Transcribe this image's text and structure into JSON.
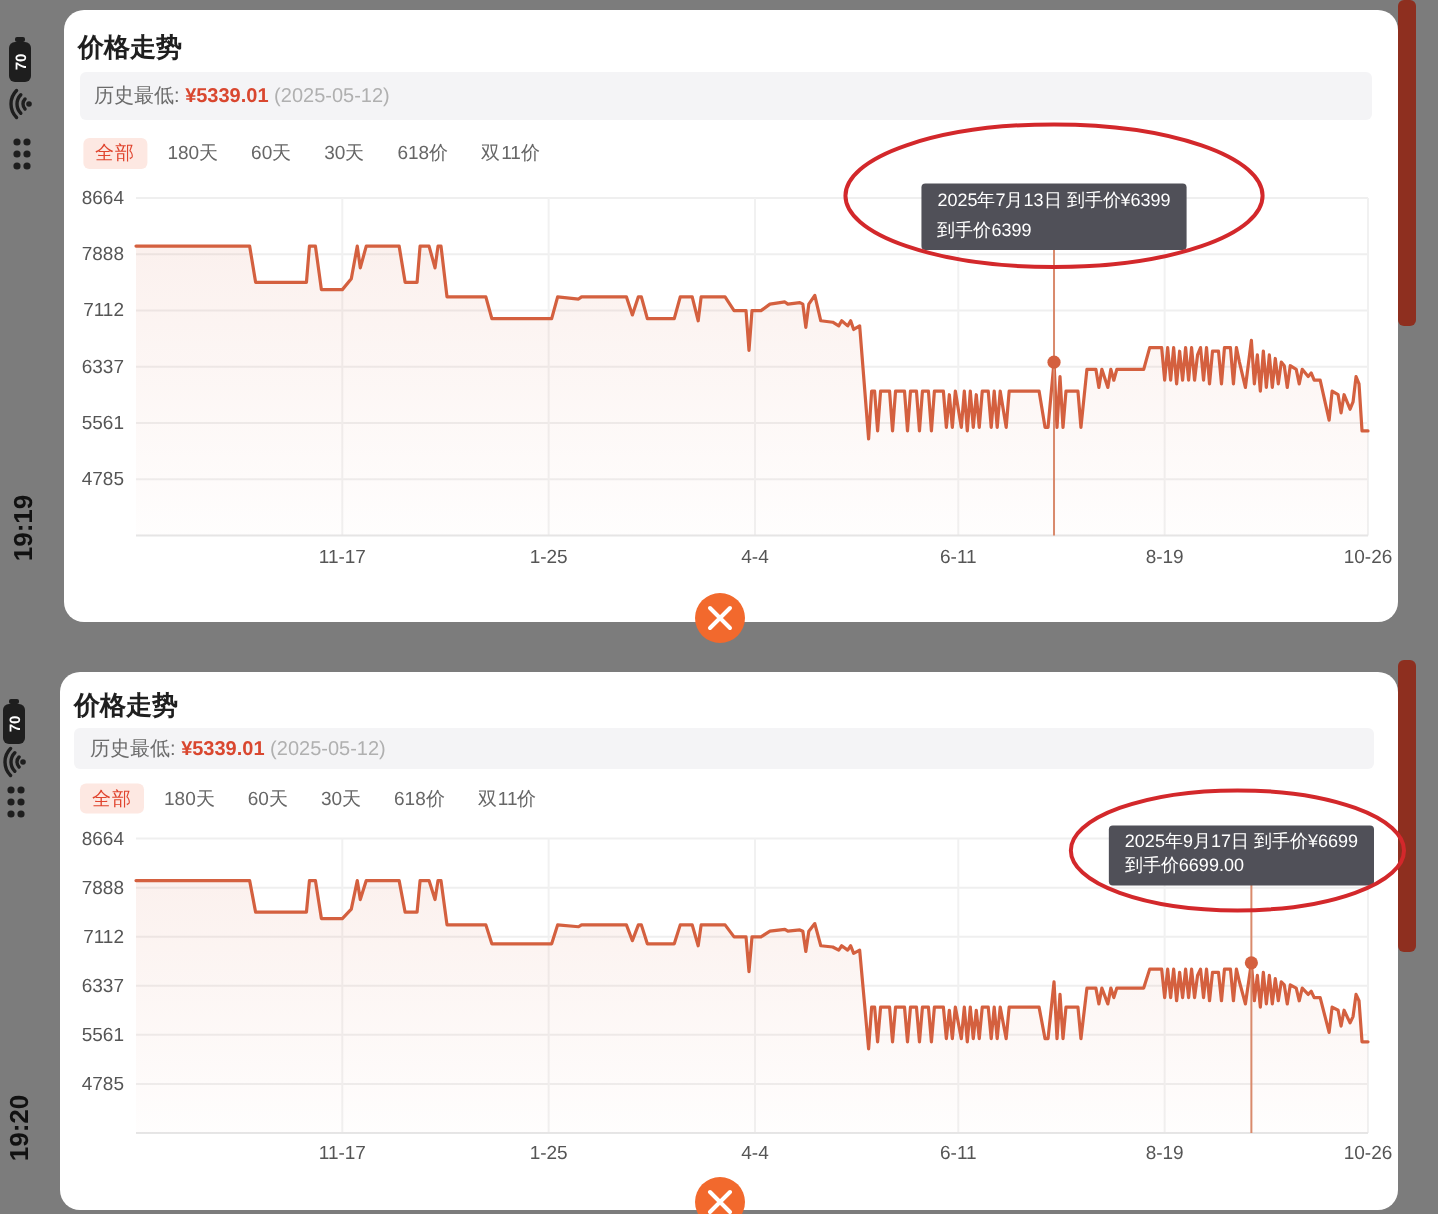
{
  "chart_data": [
    {
      "type": "area",
      "title": "价格走势",
      "subtitle": "历史最低: **¥5339.01** (2025-05-12)",
      "color": "#d4603f",
      "x": [
        "2024-09-09",
        "2024-10-17",
        "2024-10-19",
        "2024-11-05",
        "2024-11-06",
        "2024-11-08",
        "2024-11-10",
        "2024-11-17",
        "2024-11-20",
        "2024-11-22",
        "2024-11-23",
        "2024-11-25",
        "2024-12-06",
        "2024-12-08",
        "2024-12-12",
        "2024-12-13",
        "2024-12-16",
        "2024-12-18",
        "2024-12-19",
        "2024-12-20",
        "2024-12-22",
        "2025-01-04",
        "2025-01-06",
        "2025-01-26",
        "2025-01-28",
        "2025-02-04",
        "2025-02-05",
        "2025-02-20",
        "2025-02-22",
        "2025-02-24",
        "2025-02-25",
        "2025-02-27",
        "2025-03-08",
        "2025-03-10",
        "2025-03-14",
        "2025-03-16",
        "2025-03-17",
        "2025-03-25",
        "2025-03-28",
        "2025-04-01",
        "2025-04-02",
        "2025-04-03",
        "2025-04-06",
        "2025-04-09",
        "2025-04-14",
        "2025-04-15",
        "2025-04-19",
        "2025-04-20",
        "2025-04-21",
        "2025-04-22",
        "2025-04-24",
        "2025-04-26",
        "2025-04-30",
        "2025-05-02",
        "2025-05-03",
        "2025-05-05",
        "2025-05-06",
        "2025-05-07",
        "2025-05-09",
        "2025-05-12",
        "2025-05-13",
        "2025-05-14",
        "2025-05-15",
        "2025-05-16",
        "2025-05-19",
        "2025-05-20",
        "2025-05-21",
        "2025-05-24",
        "2025-05-25",
        "2025-05-26",
        "2025-05-28",
        "2025-05-29",
        "2025-05-30",
        "2025-06-01",
        "2025-06-02",
        "2025-06-03",
        "2025-06-06",
        "2025-06-07",
        "2025-06-08",
        "2025-06-09",
        "2025-06-10",
        "2025-06-12",
        "2025-06-13",
        "2025-06-14",
        "2025-06-15",
        "2025-06-16",
        "2025-06-17",
        "2025-06-18",
        "2025-06-19",
        "2025-06-21",
        "2025-06-22",
        "2025-06-23",
        "2025-06-24",
        "2025-06-25",
        "2025-06-27",
        "2025-06-28",
        "2025-07-08",
        "2025-07-10",
        "2025-07-11",
        "2025-07-13",
        "2025-07-14",
        "2025-07-15",
        "2025-07-16",
        "2025-07-17",
        "2025-07-21",
        "2025-07-22",
        "2025-07-24",
        "2025-07-27",
        "2025-07-28",
        "2025-07-29",
        "2025-07-31",
        "2025-08-01",
        "2025-08-02",
        "2025-08-03",
        "2025-08-12",
        "2025-08-14",
        "2025-08-18",
        "2025-08-19",
        "2025-08-20",
        "2025-08-21",
        "2025-08-22",
        "2025-08-23",
        "2025-08-24",
        "2025-08-25",
        "2025-08-26",
        "2025-08-27",
        "2025-08-28",
        "2025-08-29",
        "2025-08-30",
        "2025-08-31",
        "2025-09-01",
        "2025-09-02",
        "2025-09-03",
        "2025-09-04",
        "2025-09-06",
        "2025-09-07",
        "2025-09-08",
        "2025-09-10",
        "2025-09-11",
        "2025-09-12",
        "2025-09-13",
        "2025-09-15",
        "2025-09-17",
        "2025-09-18",
        "2025-09-19",
        "2025-09-20",
        "2025-09-21",
        "2025-09-22",
        "2025-09-23",
        "2025-09-24",
        "2025-09-25",
        "2025-09-26",
        "2025-09-27",
        "2025-09-28",
        "2025-09-29",
        "2025-09-30",
        "2025-10-02",
        "2025-10-03",
        "2025-10-04",
        "2025-10-06",
        "2025-10-07",
        "2025-10-08",
        "2025-10-10",
        "2025-10-13",
        "2025-10-14",
        "2025-10-16",
        "2025-10-17",
        "2025-10-18",
        "2025-10-20",
        "2025-10-21",
        "2025-10-22",
        "2025-10-23",
        "2025-10-24",
        "2025-10-26"
      ],
      "values": [
        8000,
        8000,
        7500,
        7500,
        8000,
        8000,
        7400,
        7400,
        7550,
        8000,
        7700,
        8000,
        8000,
        7500,
        7500,
        8000,
        8000,
        7700,
        8000,
        8000,
        7300,
        7300,
        7000,
        7000,
        7300,
        7270,
        7300,
        7300,
        7050,
        7300,
        7300,
        7000,
        7000,
        7300,
        7300,
        6970,
        7300,
        7300,
        7110,
        7110,
        6560,
        7110,
        7110,
        7200,
        7230,
        7200,
        7220,
        7200,
        6880,
        7200,
        7320,
        6970,
        6950,
        6900,
        6970,
        6900,
        6970,
        6850,
        6900,
        5339.01,
        6000,
        6000,
        5450,
        6000,
        6000,
        5450,
        6000,
        6000,
        5450,
        6000,
        6000,
        5450,
        6000,
        6000,
        5450,
        6000,
        6000,
        5500,
        5950,
        5500,
        6000,
        5500,
        6000,
        5450,
        6000,
        5500,
        5950,
        5500,
        6000,
        6000,
        5500,
        6000,
        5500,
        6000,
        5500,
        6000,
        6000,
        5500,
        5500,
        6399,
        5500,
        6200,
        5500,
        6000,
        6000,
        5500,
        6300,
        6300,
        6050,
        6300,
        6050,
        6300,
        6150,
        6300,
        6300,
        6600,
        6600,
        6150,
        6600,
        6150,
        6600,
        6100,
        6550,
        6150,
        6600,
        6150,
        6600,
        6150,
        6500,
        6600,
        6150,
        6600,
        6100,
        6550,
        6550,
        6100,
        6600,
        6600,
        6100,
        6600,
        6400,
        6050,
        6699,
        6100,
        6500,
        6000,
        6550,
        6050,
        6500,
        6050,
        6450,
        6100,
        6400,
        6350,
        6050,
        6350,
        6300,
        6100,
        6300,
        6200,
        6250,
        6150,
        6150,
        5600,
        6000,
        5950,
        5700,
        5950,
        5750,
        5850,
        6200,
        6100,
        5450,
        5450
      ],
      "xlim": [
        "2024-09-09",
        "2025-10-26"
      ],
      "ylim": [
        4009,
        8664
      ],
      "xticks": [
        {
          "value": "2024-11-17",
          "label": "11-17"
        },
        {
          "value": "2025-01-25",
          "label": "1-25"
        },
        {
          "value": "2025-04-04",
          "label": "4-4"
        },
        {
          "value": "2025-06-11",
          "label": "6-11"
        },
        {
          "value": "2025-08-19",
          "label": "8-19"
        },
        {
          "value": "2025-10-26",
          "label": "10-26"
        }
      ],
      "yticks": [
        4785,
        5561,
        6337,
        7112,
        7888,
        8664
      ],
      "grid": true,
      "ref_lines": [
        {
          "axis": "x",
          "value": "2025-07-13",
          "color": "#d98a6c"
        }
      ],
      "annotations": [
        "全部",
        "180天",
        "60天",
        "30天",
        "618价",
        "双11价",
        {
          "text": "2025年7月13日 到手价¥6399",
          "x": "2025-07-13"
        },
        {
          "text": "到手价6399",
          "x": "2025-07-13"
        },
        "19:19",
        "70"
      ]
    },
    {
      "type": "area",
      "title": "价格走势",
      "subtitle": "历史最低: **¥5339.01** (2025-05-12)",
      "color": "#d4603f",
      "x": [
        "2024-09-09",
        "2024-10-17",
        "2024-10-19",
        "2024-11-05",
        "2024-11-06",
        "2024-11-08",
        "2024-11-10",
        "2024-11-17",
        "2024-11-20",
        "2024-11-22",
        "2024-11-23",
        "2024-11-25",
        "2024-12-06",
        "2024-12-08",
        "2024-12-12",
        "2024-12-13",
        "2024-12-16",
        "2024-12-18",
        "2024-12-19",
        "2024-12-20",
        "2024-12-22",
        "2025-01-04",
        "2025-01-06",
        "2025-01-26",
        "2025-01-28",
        "2025-02-04",
        "2025-02-05",
        "2025-02-20",
        "2025-02-22",
        "2025-02-24",
        "2025-02-25",
        "2025-02-27",
        "2025-03-08",
        "2025-03-10",
        "2025-03-14",
        "2025-03-16",
        "2025-03-17",
        "2025-03-25",
        "2025-03-28",
        "2025-04-01",
        "2025-04-02",
        "2025-04-03",
        "2025-04-06",
        "2025-04-09",
        "2025-04-14",
        "2025-04-15",
        "2025-04-19",
        "2025-04-20",
        "2025-04-21",
        "2025-04-22",
        "2025-04-24",
        "2025-04-26",
        "2025-04-30",
        "2025-05-02",
        "2025-05-03",
        "2025-05-05",
        "2025-05-06",
        "2025-05-07",
        "2025-05-09",
        "2025-05-12",
        "2025-05-13",
        "2025-05-14",
        "2025-05-15",
        "2025-05-16",
        "2025-05-19",
        "2025-05-20",
        "2025-05-21",
        "2025-05-24",
        "2025-05-25",
        "2025-05-26",
        "2025-05-28",
        "2025-05-29",
        "2025-05-30",
        "2025-06-01",
        "2025-06-02",
        "2025-06-03",
        "2025-06-06",
        "2025-06-07",
        "2025-06-08",
        "2025-06-09",
        "2025-06-10",
        "2025-06-12",
        "2025-06-13",
        "2025-06-14",
        "2025-06-15",
        "2025-06-16",
        "2025-06-17",
        "2025-06-18",
        "2025-06-19",
        "2025-06-21",
        "2025-06-22",
        "2025-06-23",
        "2025-06-24",
        "2025-06-25",
        "2025-06-27",
        "2025-06-28",
        "2025-07-08",
        "2025-07-10",
        "2025-07-11",
        "2025-07-13",
        "2025-07-14",
        "2025-07-15",
        "2025-07-16",
        "2025-07-17",
        "2025-07-21",
        "2025-07-22",
        "2025-07-24",
        "2025-07-27",
        "2025-07-28",
        "2025-07-29",
        "2025-07-31",
        "2025-08-01",
        "2025-08-02",
        "2025-08-03",
        "2025-08-12",
        "2025-08-14",
        "2025-08-18",
        "2025-08-19",
        "2025-08-20",
        "2025-08-21",
        "2025-08-22",
        "2025-08-23",
        "2025-08-24",
        "2025-08-25",
        "2025-08-26",
        "2025-08-27",
        "2025-08-28",
        "2025-08-29",
        "2025-08-30",
        "2025-08-31",
        "2025-09-01",
        "2025-09-02",
        "2025-09-03",
        "2025-09-04",
        "2025-09-06",
        "2025-09-07",
        "2025-09-08",
        "2025-09-10",
        "2025-09-11",
        "2025-09-12",
        "2025-09-13",
        "2025-09-15",
        "2025-09-17",
        "2025-09-18",
        "2025-09-19",
        "2025-09-20",
        "2025-09-21",
        "2025-09-22",
        "2025-09-23",
        "2025-09-24",
        "2025-09-25",
        "2025-09-26",
        "2025-09-27",
        "2025-09-28",
        "2025-09-29",
        "2025-09-30",
        "2025-10-02",
        "2025-10-03",
        "2025-10-04",
        "2025-10-06",
        "2025-10-07",
        "2025-10-08",
        "2025-10-10",
        "2025-10-13",
        "2025-10-14",
        "2025-10-16",
        "2025-10-17",
        "2025-10-18",
        "2025-10-20",
        "2025-10-21",
        "2025-10-22",
        "2025-10-23",
        "2025-10-24",
        "2025-10-26"
      ],
      "values": [
        8000,
        8000,
        7500,
        7500,
        8000,
        8000,
        7400,
        7400,
        7550,
        8000,
        7700,
        8000,
        8000,
        7500,
        7500,
        8000,
        8000,
        7700,
        8000,
        8000,
        7300,
        7300,
        7000,
        7000,
        7300,
        7270,
        7300,
        7300,
        7050,
        7300,
        7300,
        7000,
        7000,
        7300,
        7300,
        6970,
        7300,
        7300,
        7110,
        7110,
        6560,
        7110,
        7110,
        7200,
        7230,
        7200,
        7220,
        7200,
        6880,
        7200,
        7320,
        6970,
        6950,
        6900,
        6970,
        6900,
        6970,
        6850,
        6900,
        5339.01,
        6000,
        6000,
        5450,
        6000,
        6000,
        5450,
        6000,
        6000,
        5450,
        6000,
        6000,
        5450,
        6000,
        6000,
        5450,
        6000,
        6000,
        5500,
        5950,
        5500,
        6000,
        5500,
        6000,
        5450,
        6000,
        5500,
        5950,
        5500,
        6000,
        6000,
        5500,
        6000,
        5500,
        6000,
        5500,
        6000,
        6000,
        5500,
        5500,
        6399,
        5500,
        6200,
        5500,
        6000,
        6000,
        5500,
        6300,
        6300,
        6050,
        6300,
        6050,
        6300,
        6150,
        6300,
        6300,
        6600,
        6600,
        6150,
        6600,
        6150,
        6600,
        6100,
        6550,
        6150,
        6600,
        6150,
        6600,
        6150,
        6500,
        6600,
        6150,
        6600,
        6100,
        6550,
        6550,
        6100,
        6600,
        6600,
        6100,
        6600,
        6400,
        6050,
        6699,
        6100,
        6500,
        6000,
        6550,
        6050,
        6500,
        6050,
        6450,
        6100,
        6400,
        6350,
        6050,
        6350,
        6300,
        6100,
        6300,
        6200,
        6250,
        6150,
        6150,
        5600,
        6000,
        5950,
        5700,
        5950,
        5750,
        5850,
        6200,
        6100,
        5450,
        5450
      ],
      "xlim": [
        "2024-09-09",
        "2025-10-26"
      ],
      "ylim": [
        4009,
        8664
      ],
      "xticks": [
        {
          "value": "2024-11-17",
          "label": "11-17"
        },
        {
          "value": "2025-01-25",
          "label": "1-25"
        },
        {
          "value": "2025-04-04",
          "label": "4-4"
        },
        {
          "value": "2025-06-11",
          "label": "6-11"
        },
        {
          "value": "2025-08-19",
          "label": "8-19"
        },
        {
          "value": "2025-10-26",
          "label": "10-26"
        }
      ],
      "yticks": [
        4785,
        5561,
        6337,
        7112,
        7888,
        8664
      ],
      "grid": true,
      "ref_lines": [
        {
          "axis": "x",
          "value": "2025-09-17",
          "color": "#d98a6c"
        }
      ],
      "annotations": [
        "全部",
        "180天",
        "60天",
        "30天",
        "618价",
        "双11价",
        {
          "text": "2025年9月17日 到手价¥6699",
          "x": "2025-09-17"
        },
        {
          "text": "到手价6699.00",
          "x": "2025-09-17"
        },
        "19:20",
        "70"
      ]
    }
  ]
}
